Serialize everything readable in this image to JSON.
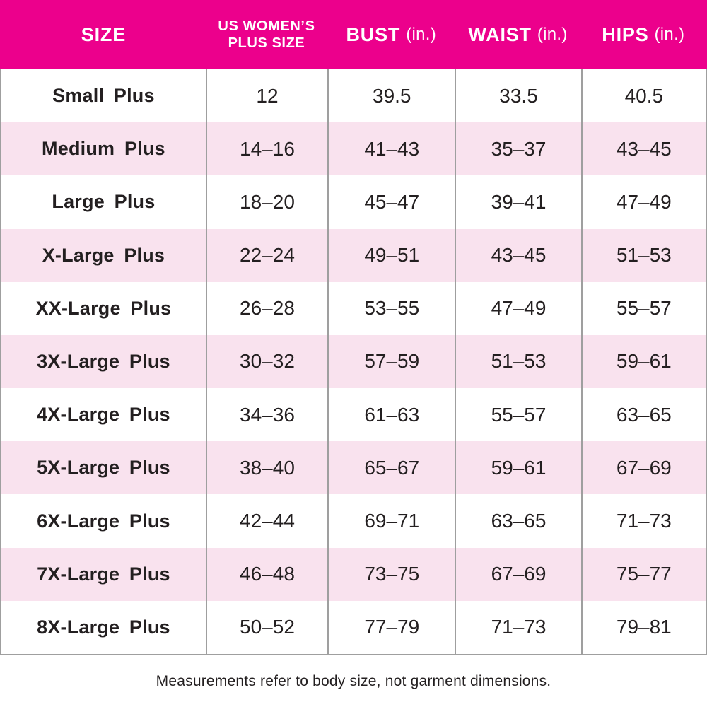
{
  "colors": {
    "header_bg": "#EC008C",
    "row_alt_bg": "#F9E2EE",
    "divider": "#9F9F9F",
    "text": "#231F20",
    "header_text": "#FFFFFF"
  },
  "table": {
    "headers": {
      "size": "SIZE",
      "plus_size_line1": "US WOMEN’S",
      "plus_size_line2": "PLUS SIZE",
      "bust": "BUST",
      "bust_unit": "(in.)",
      "waist": "WAIST",
      "waist_unit": "(in.)",
      "hips": "HIPS",
      "hips_unit": "(in.)"
    },
    "rows": [
      {
        "size": "Small Plus",
        "plus_size": "12",
        "bust": "39.5",
        "waist": "33.5",
        "hips": "40.5"
      },
      {
        "size": "Medium Plus",
        "plus_size": "14–16",
        "bust": "41–43",
        "waist": "35–37",
        "hips": "43–45"
      },
      {
        "size": "Large Plus",
        "plus_size": "18–20",
        "bust": "45–47",
        "waist": "39–41",
        "hips": "47–49"
      },
      {
        "size": "X-Large Plus",
        "plus_size": "22–24",
        "bust": "49–51",
        "waist": "43–45",
        "hips": "51–53"
      },
      {
        "size": "XX-Large Plus",
        "plus_size": "26–28",
        "bust": "53–55",
        "waist": "47–49",
        "hips": "55–57"
      },
      {
        "size": "3X-Large Plus",
        "plus_size": "30–32",
        "bust": "57–59",
        "waist": "51–53",
        "hips": "59–61"
      },
      {
        "size": "4X-Large Plus",
        "plus_size": "34–36",
        "bust": "61–63",
        "waist": "55–57",
        "hips": "63–65"
      },
      {
        "size": "5X-Large Plus",
        "plus_size": "38–40",
        "bust": "65–67",
        "waist": "59–61",
        "hips": "67–69"
      },
      {
        "size": "6X-Large Plus",
        "plus_size": "42–44",
        "bust": "69–71",
        "waist": "63–65",
        "hips": "71–73"
      },
      {
        "size": "7X-Large Plus",
        "plus_size": "46–48",
        "bust": "73–75",
        "waist": "67–69",
        "hips": "75–77"
      },
      {
        "size": "8X-Large Plus",
        "plus_size": "50–52",
        "bust": "77–79",
        "waist": "71–73",
        "hips": "79–81"
      }
    ]
  },
  "footer": {
    "note": "Measurements refer to body size, not garment dimensions."
  },
  "chart_data": {
    "type": "table",
    "title": "",
    "columns": [
      "SIZE",
      "US WOMEN’S PLUS SIZE",
      "BUST (in.)",
      "WAIST (in.)",
      "HIPS (in.)"
    ],
    "rows": [
      [
        "Small Plus",
        "12",
        "39.5",
        "33.5",
        "40.5"
      ],
      [
        "Medium Plus",
        "14–16",
        "41–43",
        "35–37",
        "43–45"
      ],
      [
        "Large Plus",
        "18–20",
        "45–47",
        "39–41",
        "47–49"
      ],
      [
        "X-Large Plus",
        "22–24",
        "49–51",
        "43–45",
        "51–53"
      ],
      [
        "XX-Large Plus",
        "26–28",
        "53–55",
        "47–49",
        "55–57"
      ],
      [
        "3X-Large Plus",
        "30–32",
        "57–59",
        "51–53",
        "59–61"
      ],
      [
        "4X-Large Plus",
        "34–36",
        "61–63",
        "55–57",
        "63–65"
      ],
      [
        "5X-Large Plus",
        "38–40",
        "65–67",
        "59–61",
        "67–69"
      ],
      [
        "6X-Large Plus",
        "42–44",
        "69–71",
        "63–65",
        "71–73"
      ],
      [
        "7X-Large Plus",
        "46–48",
        "73–75",
        "67–69",
        "75–77"
      ],
      [
        "8X-Large Plus",
        "50–52",
        "77–79",
        "71–73",
        "79–81"
      ]
    ],
    "footnote": "Measurements refer to body size, not garment dimensions.",
    "layout": {
      "alternating_row_colors": true,
      "header_position": "top"
    }
  }
}
